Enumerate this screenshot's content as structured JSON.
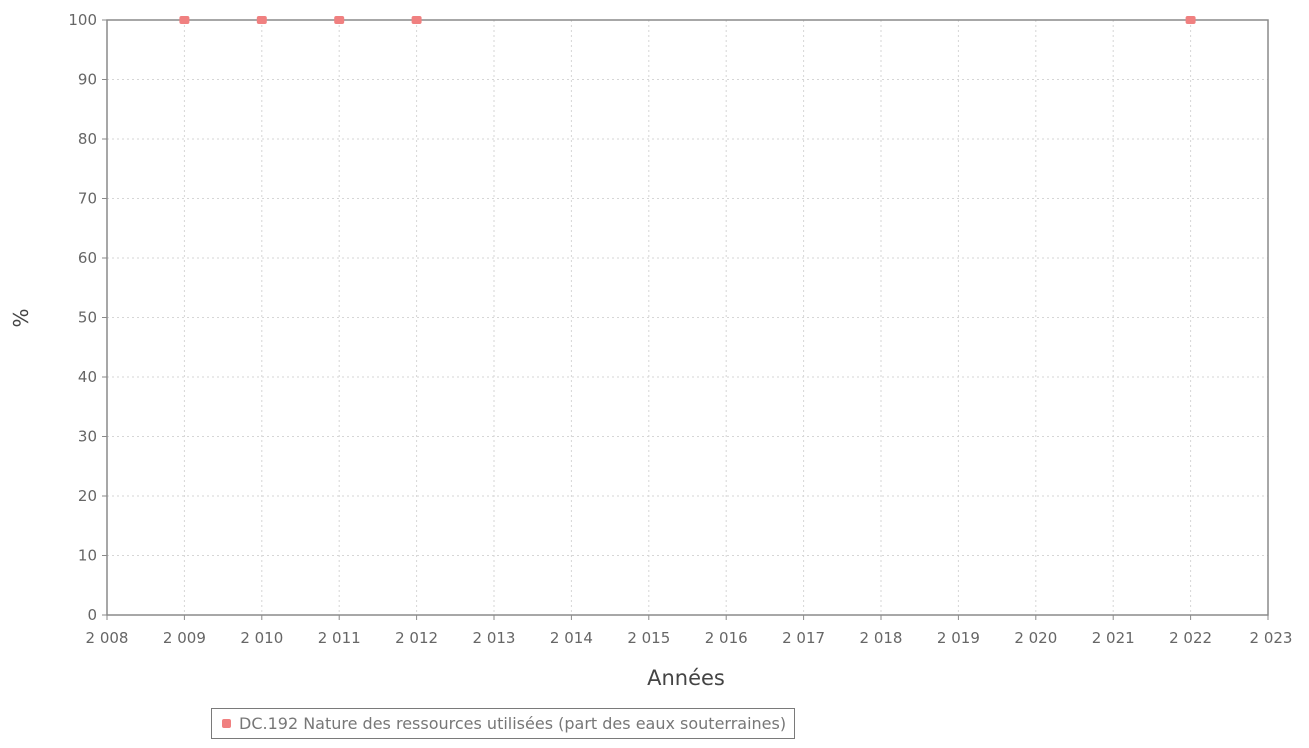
{
  "chart_data": {
    "type": "scatter",
    "ylabel": "%",
    "xlabel": "Années",
    "ylim": [
      0,
      100
    ],
    "xlim": [
      2008,
      2023
    ],
    "yticks": [
      "0",
      "10",
      "20",
      "30",
      "40",
      "50",
      "60",
      "70",
      "80",
      "90",
      "100"
    ],
    "xticks": [
      "2 008",
      "2 009",
      "2 010",
      "2 011",
      "2 012",
      "2 013",
      "2 014",
      "2 015",
      "2 016",
      "2 017",
      "2 018",
      "2 019",
      "2 020",
      "2 021",
      "2 022",
      "2 023"
    ],
    "grid": true,
    "legend_position": "bottom",
    "series": [
      {
        "name": "DC.192 Nature des ressources utilisées (part des eaux souterraines)",
        "color": "#f08080",
        "x": [
          2009,
          2010,
          2011,
          2012,
          2022
        ],
        "y": [
          100,
          100,
          100,
          100,
          100
        ]
      }
    ]
  }
}
